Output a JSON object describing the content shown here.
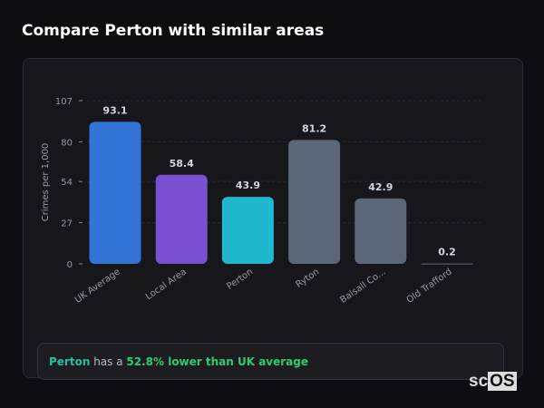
{
  "title": "Compare Perton with similar areas",
  "chart_data": {
    "type": "bar",
    "categories": [
      "UK Average",
      "Local Area",
      "Perton",
      "Ryton",
      "Balsall Co...",
      "Old Trafford"
    ],
    "values": [
      93.1,
      58.4,
      43.9,
      81.2,
      42.9,
      0.2
    ],
    "data_labels": [
      "93.1",
      "58.4",
      "43.9",
      "81.2",
      "42.9",
      "0.2"
    ],
    "colors": [
      "#3375d6",
      "#7b4fd1",
      "#1fb8cf",
      "#5b6779",
      "#5b6779",
      "#5b6779"
    ],
    "ylabel": "Crimes per 1,000",
    "yticks": [
      0,
      27,
      54,
      80,
      107
    ],
    "ylim": [
      0,
      107
    ],
    "grid": true
  },
  "summary": {
    "place": "Perton",
    "middle": " has a ",
    "highlight": "52.8% lower than UK average",
    "place_color": "#22c0a0",
    "highlight_color": "#2ecc71"
  },
  "watermark": {
    "left": "sc",
    "right": "OS"
  }
}
